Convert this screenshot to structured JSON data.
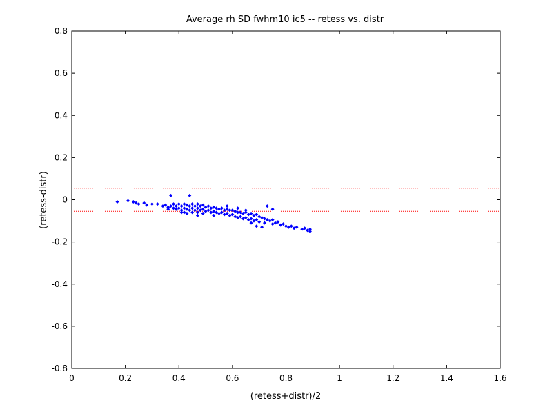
{
  "chart_data": {
    "type": "scatter",
    "title": "Average rh SD fwhm10 ic5 -- retess vs. distr",
    "xlabel": "(retess+distr)/2",
    "ylabel": "(retess-distr)",
    "xlim": [
      0,
      1.6
    ],
    "ylim": [
      -0.8,
      0.8
    ],
    "xticks": [
      0,
      0.2,
      0.4,
      0.6,
      0.8,
      1,
      1.2,
      1.4,
      1.6
    ],
    "xtick_labels": [
      "0",
      "0.2",
      "0.4",
      "0.6",
      "0.8",
      "1",
      "1.2",
      "1.4",
      "1.6"
    ],
    "yticks": [
      -0.8,
      -0.6,
      -0.4,
      -0.2,
      0,
      0.2,
      0.4,
      0.6,
      0.8
    ],
    "ytick_labels": [
      "-0.8",
      "-0.6",
      "-0.4",
      "-0.2",
      "0",
      "0.2",
      "0.4",
      "0.6",
      "0.8"
    ],
    "grid": false,
    "reference_lines": [
      0.055,
      -0.055
    ],
    "reference_line_color": "#ff0000",
    "marker_color": "#0000ff",
    "points": [
      [
        0.17,
        -0.01
      ],
      [
        0.21,
        -0.005
      ],
      [
        0.23,
        -0.01
      ],
      [
        0.24,
        -0.015
      ],
      [
        0.25,
        -0.02
      ],
      [
        0.27,
        -0.015
      ],
      [
        0.28,
        -0.025
      ],
      [
        0.3,
        -0.02
      ],
      [
        0.32,
        -0.02
      ],
      [
        0.34,
        -0.03
      ],
      [
        0.35,
        -0.025
      ],
      [
        0.36,
        -0.035
      ],
      [
        0.37,
        -0.03
      ],
      [
        0.37,
        0.02
      ],
      [
        0.38,
        -0.02
      ],
      [
        0.38,
        -0.04
      ],
      [
        0.39,
        -0.03
      ],
      [
        0.39,
        -0.045
      ],
      [
        0.4,
        -0.02
      ],
      [
        0.4,
        -0.04
      ],
      [
        0.41,
        -0.03
      ],
      [
        0.41,
        -0.05
      ],
      [
        0.42,
        -0.02
      ],
      [
        0.42,
        -0.04
      ],
      [
        0.42,
        -0.06
      ],
      [
        0.43,
        -0.025
      ],
      [
        0.43,
        -0.045
      ],
      [
        0.43,
        -0.065
      ],
      [
        0.44,
        0.02
      ],
      [
        0.44,
        -0.03
      ],
      [
        0.44,
        -0.05
      ],
      [
        0.45,
        -0.02
      ],
      [
        0.45,
        -0.04
      ],
      [
        0.45,
        -0.06
      ],
      [
        0.46,
        -0.03
      ],
      [
        0.46,
        -0.05
      ],
      [
        0.47,
        -0.02
      ],
      [
        0.47,
        -0.04
      ],
      [
        0.47,
        -0.06
      ],
      [
        0.48,
        -0.03
      ],
      [
        0.48,
        -0.05
      ],
      [
        0.49,
        -0.025
      ],
      [
        0.49,
        -0.045
      ],
      [
        0.49,
        -0.065
      ],
      [
        0.5,
        -0.035
      ],
      [
        0.5,
        -0.055
      ],
      [
        0.51,
        -0.03
      ],
      [
        0.51,
        -0.05
      ],
      [
        0.52,
        -0.04
      ],
      [
        0.52,
        -0.06
      ],
      [
        0.53,
        -0.035
      ],
      [
        0.53,
        -0.055
      ],
      [
        0.54,
        -0.04
      ],
      [
        0.54,
        -0.06
      ],
      [
        0.55,
        -0.045
      ],
      [
        0.55,
        -0.065
      ],
      [
        0.56,
        -0.04
      ],
      [
        0.56,
        -0.06
      ],
      [
        0.57,
        -0.05
      ],
      [
        0.57,
        -0.07
      ],
      [
        0.58,
        -0.045
      ],
      [
        0.58,
        -0.065
      ],
      [
        0.59,
        -0.05
      ],
      [
        0.59,
        -0.075
      ],
      [
        0.6,
        -0.05
      ],
      [
        0.6,
        -0.07
      ],
      [
        0.61,
        -0.055
      ],
      [
        0.61,
        -0.08
      ],
      [
        0.62,
        -0.06
      ],
      [
        0.62,
        -0.085
      ],
      [
        0.63,
        -0.06
      ],
      [
        0.63,
        -0.08
      ],
      [
        0.64,
        -0.065
      ],
      [
        0.64,
        -0.09
      ],
      [
        0.65,
        -0.06
      ],
      [
        0.65,
        -0.085
      ],
      [
        0.66,
        -0.07
      ],
      [
        0.66,
        -0.095
      ],
      [
        0.67,
        -0.065
      ],
      [
        0.67,
        -0.09
      ],
      [
        0.68,
        -0.075
      ],
      [
        0.68,
        -0.1
      ],
      [
        0.69,
        -0.07
      ],
      [
        0.69,
        -0.095
      ],
      [
        0.7,
        -0.08
      ],
      [
        0.7,
        -0.105
      ],
      [
        0.71,
        -0.085
      ],
      [
        0.71,
        -0.13
      ],
      [
        0.72,
        -0.09
      ],
      [
        0.72,
        -0.11
      ],
      [
        0.73,
        -0.095
      ],
      [
        0.74,
        -0.1
      ],
      [
        0.75,
        -0.095
      ],
      [
        0.75,
        -0.115
      ],
      [
        0.76,
        -0.11
      ],
      [
        0.77,
        -0.105
      ],
      [
        0.78,
        -0.12
      ],
      [
        0.79,
        -0.115
      ],
      [
        0.8,
        -0.125
      ],
      [
        0.81,
        -0.13
      ],
      [
        0.82,
        -0.125
      ],
      [
        0.83,
        -0.135
      ],
      [
        0.84,
        -0.13
      ],
      [
        0.86,
        -0.14
      ],
      [
        0.87,
        -0.135
      ],
      [
        0.88,
        -0.145
      ],
      [
        0.89,
        -0.14
      ],
      [
        0.89,
        -0.15
      ],
      [
        0.73,
        -0.03
      ],
      [
        0.75,
        -0.045
      ],
      [
        0.69,
        -0.125
      ],
      [
        0.65,
        -0.05
      ],
      [
        0.58,
        -0.03
      ],
      [
        0.53,
        -0.075
      ],
      [
        0.47,
        -0.075
      ],
      [
        0.41,
        -0.06
      ],
      [
        0.36,
        -0.045
      ],
      [
        0.62,
        -0.04
      ],
      [
        0.67,
        -0.11
      ]
    ]
  }
}
